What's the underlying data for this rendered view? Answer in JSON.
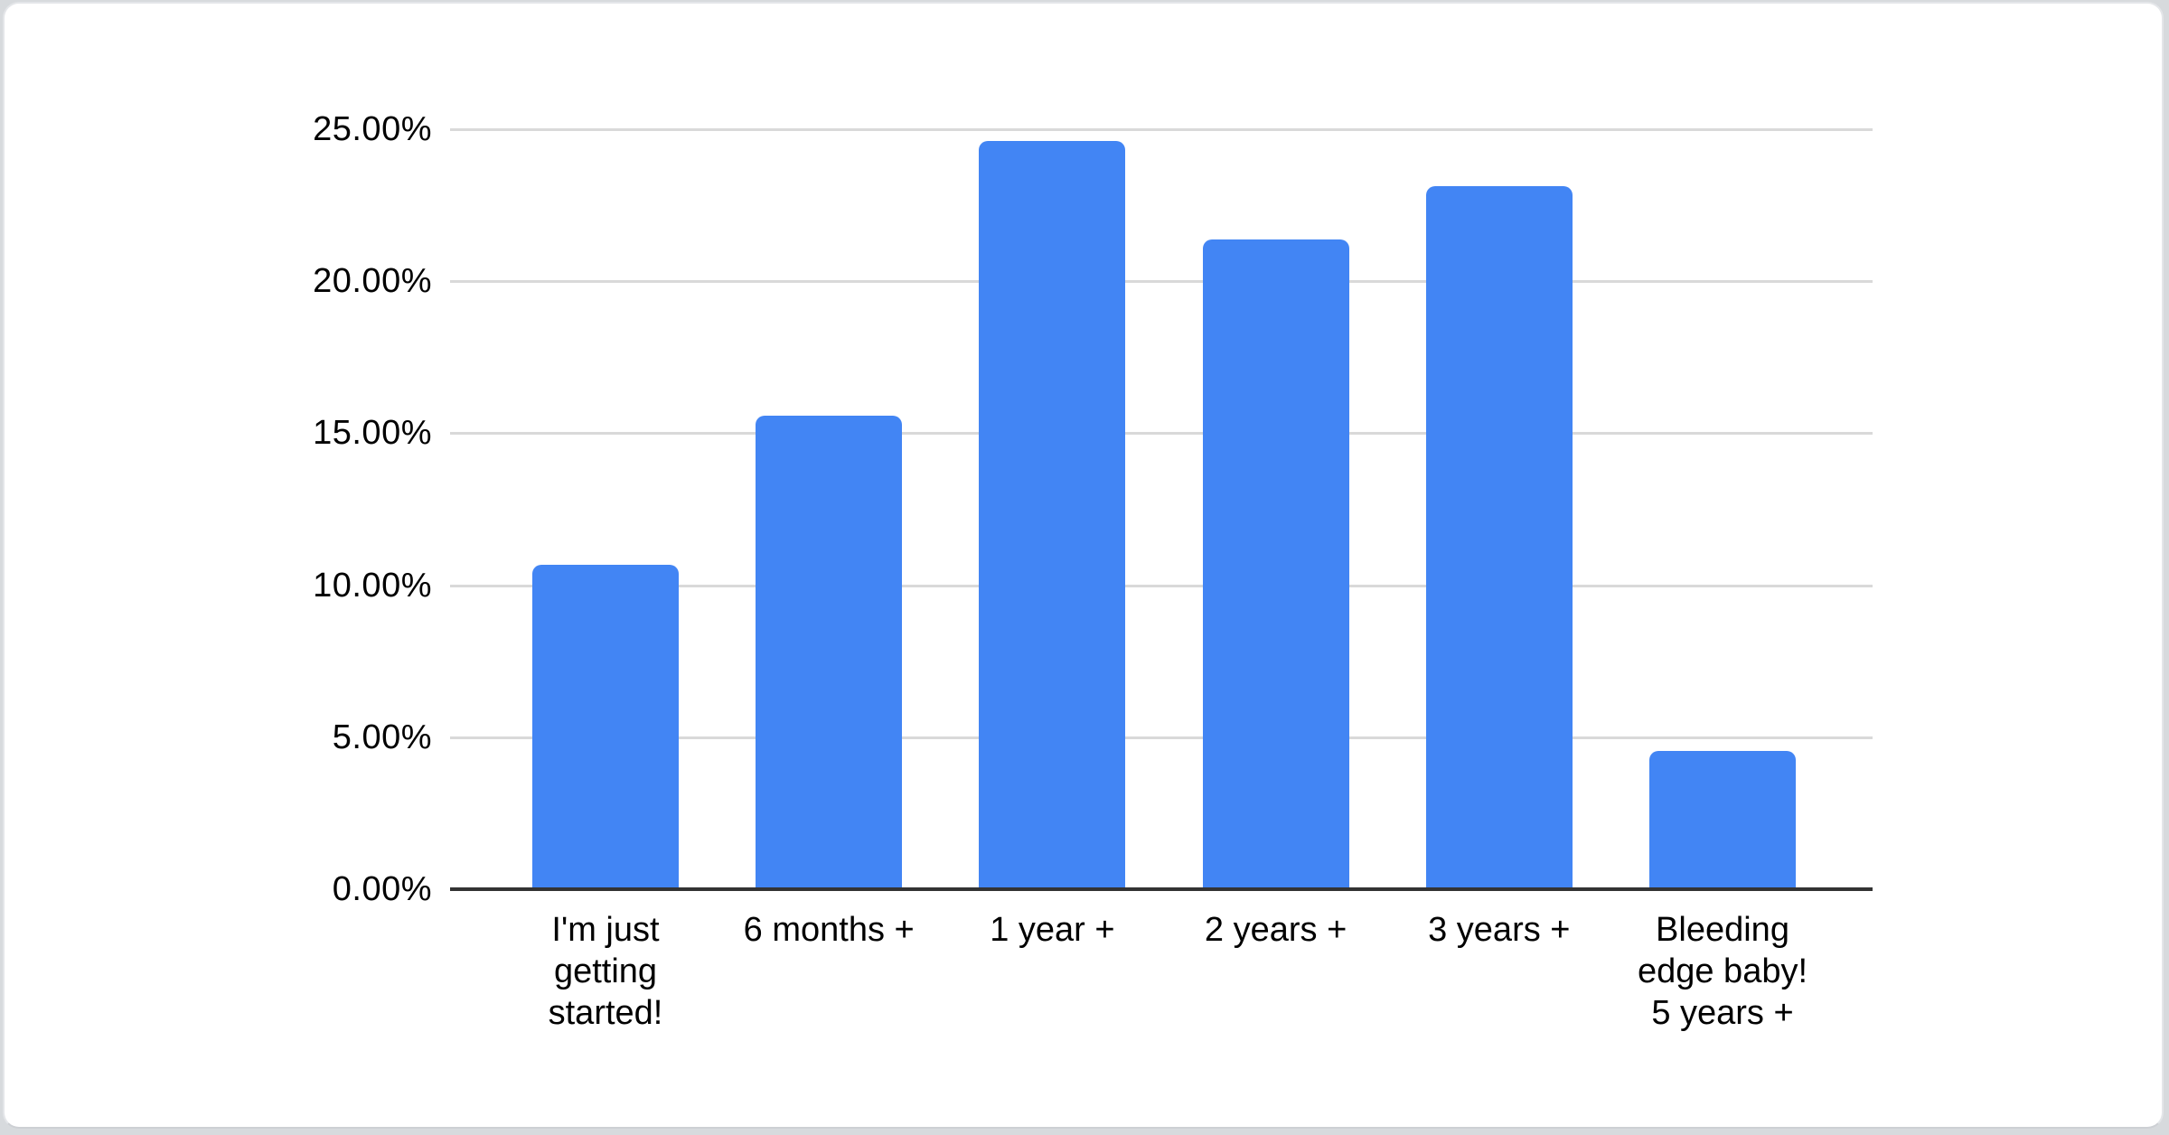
{
  "page": {
    "background_color": "#d7dadd",
    "card_color": "#ffffff"
  },
  "chart_data": {
    "type": "bar",
    "title": "",
    "categories": [
      "I'm just getting started!",
      "6 months +",
      "1 year +",
      "2 years +",
      "3 years +",
      "Bleeding edge baby! 5 years +"
    ],
    "category_display_lines": [
      "I'm just\ngetting\nstarted!",
      "6 months +",
      "1 year +",
      "2 years +",
      "3 years +",
      "Bleeding\nedge baby!\n5 years +"
    ],
    "values": [
      10.66,
      15.58,
      24.62,
      21.36,
      23.14,
      4.55
    ],
    "value_unit": "%",
    "xlabel": "",
    "ylabel": "",
    "ylim": [
      0,
      25
    ],
    "ytick_step": 5,
    "yticks": [
      {
        "value": 0,
        "label": "0.00%"
      },
      {
        "value": 5,
        "label": "5.00%"
      },
      {
        "value": 10,
        "label": "10.00%"
      },
      {
        "value": 15,
        "label": "15.00%"
      },
      {
        "value": 20,
        "label": "20.00%"
      },
      {
        "value": 25,
        "label": "25.00%"
      }
    ],
    "grid": true,
    "legend": "none",
    "colors": {
      "bar": "#4285f4",
      "gridline": "#d9d9d9",
      "axis_line": "#333333",
      "tick_text": "#000000"
    }
  }
}
